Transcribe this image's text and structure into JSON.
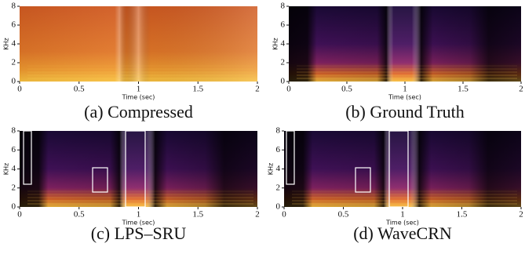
{
  "chart_data": [
    {
      "type": "spectrogram",
      "caption": "(a) Compressed",
      "xlabel": "Time (sec)",
      "ylabel": "KHz",
      "xlim": [
        0,
        2
      ],
      "ylim": [
        0,
        8
      ],
      "xticks": [
        0,
        0.5,
        1,
        1.5,
        2
      ],
      "yticks": [
        0,
        2,
        4,
        6,
        8
      ],
      "colormap": "bright"
    },
    {
      "type": "spectrogram",
      "caption": "(b) Ground Truth",
      "xlabel": "Time (sec)",
      "ylabel": "KHz",
      "xlim": [
        0,
        2
      ],
      "ylim": [
        0,
        8
      ],
      "xticks": [
        0,
        0.5,
        1,
        1.5,
        2
      ],
      "yticks": [
        0,
        2,
        4,
        6,
        8
      ],
      "colormap": "dark"
    },
    {
      "type": "spectrogram",
      "caption": "(c) LPS–SRU",
      "xlabel": "Time (sec)",
      "ylabel": "KHz",
      "xlim": [
        0,
        2
      ],
      "ylim": [
        0,
        8
      ],
      "xticks": [
        0,
        0.5,
        1,
        1.5,
        2
      ],
      "yticks": [
        0,
        2,
        4,
        6,
        8
      ],
      "colormap": "dark"
    },
    {
      "type": "spectrogram",
      "caption": "(d) WaveCRN",
      "xlabel": "Time (sec)",
      "ylabel": "KHz",
      "xlim": [
        0,
        2
      ],
      "ylim": [
        0,
        8
      ],
      "xticks": [
        0,
        0.5,
        1,
        1.5,
        2
      ],
      "yticks": [
        0,
        2,
        4,
        6,
        8
      ],
      "colormap": "dark"
    }
  ]
}
